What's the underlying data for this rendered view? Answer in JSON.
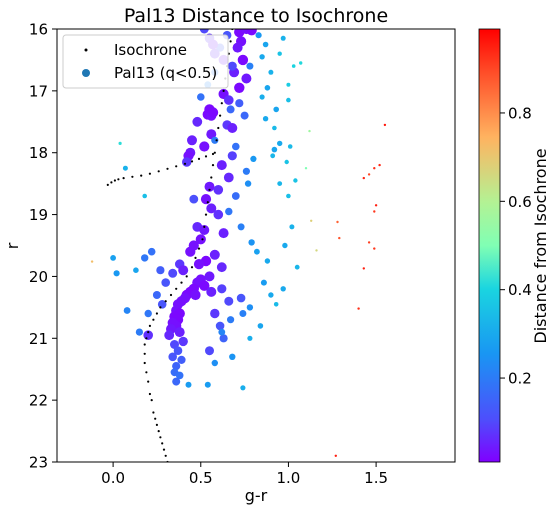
{
  "chart_data": {
    "type": "scatter",
    "title": "Pal13 Distance to Isochrone",
    "xlabel": "g-r",
    "ylabel": "r",
    "xlim": [
      -0.32,
      1.95
    ],
    "ylim": [
      16,
      23
    ],
    "y_inverted": true,
    "x_ticks": [
      "0.0",
      "0.5",
      "1.0",
      "1.5"
    ],
    "x_tick_values": [
      0,
      0.5,
      1,
      1.5
    ],
    "y_ticks": [
      "16",
      "17",
      "18",
      "19",
      "20",
      "21",
      "22",
      "23"
    ],
    "y_tick_values": [
      16,
      17,
      18,
      19,
      20,
      21,
      22,
      23
    ],
    "grid": false,
    "legend": {
      "position": "top-left",
      "entries": [
        "Isochrone",
        "Pal13 (q<0.5)"
      ]
    },
    "colorbar": {
      "label": "Distance from Isochrone",
      "colormap": "rainbow",
      "range": [
        0.01,
        0.99
      ],
      "ticks": [
        "0.2",
        "0.4",
        "0.6",
        "0.8"
      ],
      "tick_values": [
        0.2,
        0.4,
        0.6,
        0.8
      ]
    },
    "isochrone": {
      "name": "Isochrone",
      "color": "#000000",
      "points": [
        [
          0.31,
          23.0
        ],
        [
          0.3,
          22.9
        ],
        [
          0.29,
          22.8
        ],
        [
          0.28,
          22.7
        ],
        [
          0.27,
          22.6
        ],
        [
          0.26,
          22.5
        ],
        [
          0.25,
          22.4
        ],
        [
          0.24,
          22.3
        ],
        [
          0.23,
          22.2
        ],
        [
          0.22,
          22.0
        ],
        [
          0.21,
          21.9
        ],
        [
          0.2,
          21.7
        ],
        [
          0.19,
          21.55
        ],
        [
          0.18,
          21.4
        ],
        [
          0.18,
          21.25
        ],
        [
          0.18,
          21.1
        ],
        [
          0.19,
          21.0
        ],
        [
          0.2,
          20.9
        ],
        [
          0.21,
          20.8
        ],
        [
          0.23,
          20.7
        ],
        [
          0.25,
          20.6
        ],
        [
          0.27,
          20.5
        ],
        [
          0.3,
          20.4
        ],
        [
          0.33,
          20.3
        ],
        [
          0.36,
          20.2
        ],
        [
          0.39,
          20.1
        ],
        [
          0.42,
          20.0
        ],
        [
          0.45,
          19.85
        ],
        [
          0.47,
          19.7
        ],
        [
          0.49,
          19.55
        ],
        [
          0.51,
          19.4
        ],
        [
          0.52,
          19.2
        ],
        [
          0.53,
          19.0
        ],
        [
          0.54,
          18.8
        ],
        [
          0.55,
          18.6
        ],
        [
          0.56,
          18.4
        ],
        [
          0.57,
          18.2
        ],
        [
          0.58,
          18.0
        ],
        [
          0.59,
          17.8
        ],
        [
          0.6,
          17.6
        ],
        [
          0.61,
          17.4
        ],
        [
          0.62,
          17.2
        ],
        [
          0.63,
          17.0
        ],
        [
          0.64,
          16.8
        ],
        [
          0.65,
          16.6
        ],
        [
          0.66,
          16.4
        ],
        [
          0.67,
          16.2
        ],
        [
          0.68,
          16.0
        ],
        [
          0.57,
          18.02
        ],
        [
          0.53,
          18.06
        ],
        [
          0.49,
          18.1
        ],
        [
          0.45,
          18.14
        ],
        [
          0.41,
          18.18
        ],
        [
          0.36,
          18.22
        ],
        [
          0.31,
          18.26
        ],
        [
          0.26,
          18.3
        ],
        [
          0.21,
          18.34
        ],
        [
          0.16,
          18.37
        ],
        [
          0.11,
          18.39
        ],
        [
          0.06,
          18.41
        ],
        [
          0.03,
          18.43
        ],
        [
          0.01,
          18.45
        ],
        [
          -0.01,
          18.48
        ],
        [
          -0.03,
          18.52
        ]
      ]
    },
    "pal13_points": [
      [
        0.72,
        16.05,
        0.02
      ],
      [
        0.76,
        16.0,
        0.03
      ],
      [
        0.79,
        16.02,
        0.02
      ],
      [
        0.73,
        16.2,
        0.03
      ],
      [
        0.71,
        16.3,
        0.04
      ],
      [
        0.74,
        16.5,
        0.02
      ],
      [
        0.69,
        16.7,
        0.05
      ],
      [
        0.76,
        16.8,
        0.04
      ],
      [
        0.72,
        16.95,
        0.02
      ],
      [
        0.63,
        17.05,
        0.03
      ],
      [
        0.66,
        17.15,
        0.07
      ],
      [
        0.55,
        17.3,
        0.02
      ],
      [
        0.54,
        17.38,
        0.02
      ],
      [
        0.56,
        17.4,
        0.03
      ],
      [
        0.57,
        17.35,
        0.02
      ],
      [
        0.48,
        17.5,
        0.06
      ],
      [
        0.65,
        17.55,
        0.08
      ],
      [
        0.68,
        17.6,
        0.05
      ],
      [
        0.56,
        17.7,
        0.04
      ],
      [
        0.45,
        17.8,
        0.05
      ],
      [
        0.52,
        17.9,
        0.03
      ],
      [
        0.44,
        18.0,
        0.04
      ],
      [
        0.43,
        18.05,
        0.03
      ],
      [
        0.42,
        18.15,
        0.08
      ],
      [
        0.62,
        18.2,
        0.05
      ],
      [
        0.66,
        18.4,
        0.06
      ],
      [
        0.55,
        18.55,
        0.04
      ],
      [
        0.53,
        18.75,
        0.03
      ],
      [
        0.56,
        18.9,
        0.05
      ],
      [
        0.6,
        19.0,
        0.07
      ],
      [
        0.48,
        19.2,
        0.06
      ],
      [
        0.52,
        19.25,
        0.04
      ],
      [
        0.5,
        19.4,
        0.03
      ],
      [
        0.46,
        19.5,
        0.03
      ],
      [
        0.44,
        19.6,
        0.03
      ],
      [
        0.58,
        19.65,
        0.05
      ],
      [
        0.53,
        19.75,
        0.02
      ],
      [
        0.49,
        19.8,
        0.03
      ],
      [
        0.38,
        19.8,
        0.08
      ],
      [
        0.62,
        19.85,
        0.06
      ],
      [
        0.4,
        19.9,
        0.05
      ],
      [
        0.34,
        19.95,
        0.1
      ],
      [
        0.55,
        20.0,
        0.04
      ],
      [
        0.5,
        20.05,
        0.03
      ],
      [
        0.48,
        20.1,
        0.03
      ],
      [
        0.52,
        20.15,
        0.02
      ],
      [
        0.46,
        20.2,
        0.02
      ],
      [
        0.44,
        20.25,
        0.02
      ],
      [
        0.42,
        20.3,
        0.02
      ],
      [
        0.56,
        20.25,
        0.05
      ],
      [
        0.47,
        20.3,
        0.03
      ],
      [
        0.41,
        20.35,
        0.03
      ],
      [
        0.39,
        20.4,
        0.03
      ],
      [
        0.37,
        20.45,
        0.03
      ],
      [
        0.36,
        20.55,
        0.03
      ],
      [
        0.38,
        20.6,
        0.02
      ],
      [
        0.35,
        20.65,
        0.02
      ],
      [
        0.37,
        20.7,
        0.02
      ],
      [
        0.34,
        20.75,
        0.03
      ],
      [
        0.36,
        20.8,
        0.03
      ],
      [
        0.33,
        20.85,
        0.04
      ],
      [
        0.38,
        20.9,
        0.05
      ],
      [
        0.32,
        20.95,
        0.06
      ],
      [
        0.2,
        20.95,
        0.07
      ],
      [
        0.4,
        21.05,
        0.08
      ],
      [
        0.35,
        21.1,
        0.1
      ],
      [
        0.37,
        21.2,
        0.12
      ],
      [
        0.34,
        21.3,
        0.12
      ],
      [
        0.39,
        21.35,
        0.14
      ],
      [
        0.36,
        21.45,
        0.15
      ],
      [
        0.35,
        21.55,
        0.17
      ],
      [
        0.38,
        21.6,
        0.18
      ],
      [
        0.36,
        21.7,
        0.16
      ],
      [
        0.58,
        20.6,
        0.08
      ],
      [
        0.66,
        20.4,
        0.1
      ],
      [
        0.73,
        20.35,
        0.12
      ],
      [
        0.62,
        20.2,
        0.09
      ],
      [
        0.61,
        20.8,
        0.12
      ],
      [
        0.63,
        21.0,
        0.15
      ],
      [
        0.55,
        21.2,
        0.1
      ],
      [
        0.3,
        20.1,
        0.12
      ],
      [
        0.27,
        19.9,
        0.14
      ],
      [
        0.22,
        19.6,
        0.18
      ],
      [
        0.25,
        20.3,
        0.16
      ],
      [
        0.28,
        20.45,
        0.12
      ],
      [
        0.2,
        20.6,
        0.19
      ],
      [
        0.15,
        20.9,
        0.2
      ],
      [
        0.08,
        20.55,
        0.22
      ],
      [
        0.72,
        17.2,
        0.14
      ],
      [
        0.75,
        17.4,
        0.16
      ],
      [
        0.7,
        17.9,
        0.18
      ],
      [
        0.76,
        18.3,
        0.2
      ],
      [
        0.77,
        18.5,
        0.24
      ],
      [
        0.8,
        18.1,
        0.26
      ],
      [
        0.7,
        18.7,
        0.17
      ],
      [
        0.66,
        18.95,
        0.19
      ],
      [
        0.73,
        19.2,
        0.21
      ],
      [
        0.79,
        19.45,
        0.25
      ],
      [
        0.82,
        19.6,
        0.28
      ],
      [
        0.88,
        19.75,
        0.3
      ],
      [
        0.86,
        20.1,
        0.27
      ],
      [
        0.9,
        20.3,
        0.3
      ],
      [
        0.78,
        20.5,
        0.24
      ],
      [
        0.74,
        20.6,
        0.21
      ],
      [
        0.67,
        20.7,
        0.2
      ],
      [
        0.62,
        20.9,
        0.22
      ],
      [
        0.58,
        21.4,
        0.24
      ],
      [
        0.43,
        21.75,
        0.27
      ],
      [
        0.68,
        21.3,
        0.25
      ],
      [
        0.74,
        21.8,
        0.31
      ],
      [
        0.65,
        16.1,
        0.12
      ],
      [
        0.61,
        16.3,
        0.14
      ],
      [
        0.58,
        16.7,
        0.2
      ],
      [
        0.54,
        16.9,
        0.22
      ],
      [
        0.5,
        17.1,
        0.18
      ],
      [
        0.58,
        17.8,
        0.2
      ],
      [
        0.68,
        16.6,
        0.1
      ],
      [
        0.83,
        16.1,
        0.26
      ],
      [
        0.87,
        16.25,
        0.29
      ],
      [
        0.85,
        16.45,
        0.3
      ],
      [
        0.9,
        16.7,
        0.32
      ],
      [
        0.88,
        16.95,
        0.29
      ],
      [
        0.85,
        17.1,
        0.31
      ],
      [
        0.87,
        17.45,
        0.3
      ],
      [
        0.92,
        17.6,
        0.34
      ],
      [
        0.95,
        17.85,
        0.3
      ],
      [
        0.91,
        18.05,
        0.33
      ],
      [
        0.78,
        16.6,
        0.21
      ],
      [
        0.67,
        17.3,
        0.16
      ],
      [
        0.95,
        16.4,
        0.36
      ],
      [
        1.0,
        16.9,
        0.38
      ],
      [
        1.03,
        16.6,
        0.4
      ],
      [
        1.0,
        17.15,
        0.35
      ],
      [
        1.02,
        19.2,
        0.32
      ],
      [
        0.98,
        19.5,
        0.3
      ],
      [
        1.05,
        19.85,
        0.33
      ],
      [
        0.97,
        20.2,
        0.3
      ],
      [
        0.93,
        20.45,
        0.34
      ],
      [
        0.84,
        20.8,
        0.29
      ],
      [
        0.78,
        21.0,
        0.31
      ],
      [
        0.63,
        16.5,
        0.04
      ],
      [
        0.93,
        17.3,
        0.29
      ],
      [
        0.18,
        19.7,
        0.19
      ],
      [
        0.13,
        19.9,
        0.29
      ],
      [
        0.0,
        19.7,
        0.28
      ],
      [
        0.07,
        18.25,
        0.32
      ],
      [
        0.02,
        19.95,
        0.26
      ],
      [
        0.04,
        17.85,
        0.42
      ],
      [
        0.18,
        18.7,
        0.35
      ],
      [
        0.54,
        21.75,
        0.27
      ],
      [
        0.58,
        16.4,
        0.06
      ],
      [
        0.55,
        16.15,
        0.07
      ],
      [
        0.57,
        16.25,
        0.04
      ],
      [
        0.52,
        16.0,
        0.1
      ],
      [
        0.95,
        18.5,
        0.33
      ],
      [
        1.04,
        18.45,
        0.36
      ],
      [
        1.01,
        17.9,
        0.34
      ],
      [
        0.99,
        18.15,
        0.36
      ],
      [
        1.12,
        17.65,
        0.56
      ],
      [
        1.1,
        18.25,
        0.5
      ],
      [
        0.97,
        16.15,
        0.32
      ],
      [
        0.92,
        17.95,
        0.29
      ],
      [
        1.07,
        16.55,
        0.41
      ],
      [
        1.0,
        18.7,
        0.35
      ],
      [
        1.13,
        19.1,
        0.68
      ],
      [
        1.16,
        19.58,
        0.66
      ],
      [
        -0.12,
        19.76,
        0.72
      ],
      [
        0.63,
        19.3,
        0.05
      ],
      [
        0.68,
        18.05,
        0.09
      ],
      [
        0.6,
        18.6,
        0.07
      ],
      [
        0.46,
        18.75,
        0.11
      ],
      [
        1.28,
        19.12,
        0.86
      ],
      [
        1.29,
        19.38,
        0.88
      ],
      [
        1.27,
        22.9,
        0.95
      ],
      [
        1.4,
        20.52,
        0.93
      ],
      [
        1.43,
        19.87,
        0.95
      ],
      [
        1.46,
        19.45,
        0.91
      ],
      [
        1.49,
        19.55,
        0.92
      ],
      [
        1.46,
        18.35,
        0.9
      ],
      [
        1.49,
        18.25,
        0.93
      ],
      [
        1.52,
        18.2,
        0.94
      ],
      [
        1.55,
        17.55,
        0.96
      ],
      [
        1.49,
        18.95,
        0.92
      ],
      [
        1.5,
        18.85,
        0.95
      ],
      [
        1.43,
        18.41,
        0.94
      ]
    ]
  }
}
